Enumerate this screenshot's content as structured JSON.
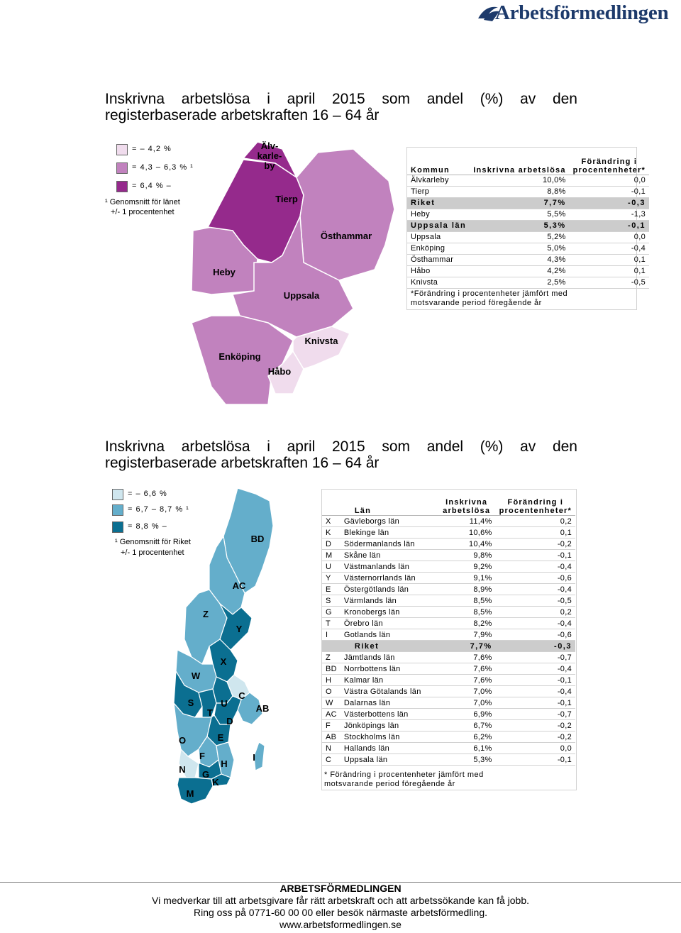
{
  "brand": {
    "name": "Arbetsförmedlingen"
  },
  "section1": {
    "title": "Inskrivna arbetslösa i april 2015 som andel (%) av den registerbaserade arbetskraften 16 – 64 år",
    "legend": [
      {
        "label": "= – 4,2 %",
        "color": "#f0dced"
      },
      {
        "label": "= 4,3 – 6,3 % ¹",
        "color": "#c182be"
      },
      {
        "label": "= 6,4 % –",
        "color": "#952a8c"
      }
    ],
    "legend_note": [
      "¹ Genomsnitt för länet",
      "+/- 1 procentenhet"
    ],
    "table": {
      "headers": [
        "Kommun",
        "Inskrivna arbetslösa",
        "Förändring i procentenheter*"
      ],
      "rows": [
        {
          "name": "Älvkarleby",
          "value": "10,0%",
          "change": "0,0",
          "highlight": false
        },
        {
          "name": "Tierp",
          "value": "8,8%",
          "change": "-0,1",
          "highlight": false
        },
        {
          "name": "Riket",
          "value": "7,7%",
          "change": "-0,3",
          "highlight": true
        },
        {
          "name": "Heby",
          "value": "5,5%",
          "change": "-1,3",
          "highlight": false
        },
        {
          "name": "Uppsala län",
          "value": "5,3%",
          "change": "-0,1",
          "highlight": true
        },
        {
          "name": "Uppsala",
          "value": "5,2%",
          "change": "0,0",
          "highlight": false
        },
        {
          "name": "Enköping",
          "value": "5,0%",
          "change": "-0,4",
          "highlight": false
        },
        {
          "name": "Östhammar",
          "value": "4,3%",
          "change": "0,1",
          "highlight": false
        },
        {
          "name": "Håbo",
          "value": "4,2%",
          "change": "0,1",
          "highlight": false
        },
        {
          "name": "Knivsta",
          "value": "2,5%",
          "change": "-0,5",
          "highlight": false
        }
      ],
      "note": [
        "*Förändring i procentenheter jämfört med",
        "motsvarande period föregående år"
      ]
    },
    "map_labels": {
      "alvkarleby": "Älv-\nkarle-\nby",
      "tierp": "Tierp",
      "osthammar": "Östhammar",
      "heby": "Heby",
      "uppsala": "Uppsala",
      "knivsta": "Knivsta",
      "enkoping": "Enköping",
      "habo": "Håbo"
    }
  },
  "section2": {
    "title": "Inskrivna arbetslösa i april 2015 som andel (%) av den registerbaserade arbetskraften 16 – 64 år",
    "legend": [
      {
        "label": "= – 6,6 %",
        "color": "#cfe6ee"
      },
      {
        "label": "= 6,7 – 8,7 % ¹",
        "color": "#64aecb"
      },
      {
        "label": "= 8,8 % –",
        "color": "#0b6f91"
      }
    ],
    "legend_note": [
      "¹ Genomsnitt för Riket",
      "+/- 1 procentenhet"
    ],
    "table": {
      "headers": [
        "",
        "Län",
        "Inskrivna arbetslösa",
        "Förändring i procentenheter*"
      ],
      "rows": [
        {
          "code": "X",
          "name": "Gävleborgs län",
          "value": "11,4%",
          "change": "0,2",
          "highlight": false
        },
        {
          "code": "K",
          "name": "Blekinge län",
          "value": "10,6%",
          "change": "0,1",
          "highlight": false
        },
        {
          "code": "D",
          "name": "Södermanlands län",
          "value": "10,4%",
          "change": "-0,2",
          "highlight": false
        },
        {
          "code": "M",
          "name": "Skåne län",
          "value": "9,8%",
          "change": "-0,1",
          "highlight": false
        },
        {
          "code": "U",
          "name": "Västmanlands län",
          "value": "9,2%",
          "change": "-0,4",
          "highlight": false
        },
        {
          "code": "Y",
          "name": "Västernorrlands län",
          "value": "9,1%",
          "change": "-0,6",
          "highlight": false
        },
        {
          "code": "E",
          "name": "Östergötlands län",
          "value": "8,9%",
          "change": "-0,4",
          "highlight": false
        },
        {
          "code": "S",
          "name": "Värmlands län",
          "value": "8,5%",
          "change": "-0,5",
          "highlight": false
        },
        {
          "code": "G",
          "name": "Kronobergs län",
          "value": "8,5%",
          "change": "0,2",
          "highlight": false
        },
        {
          "code": "T",
          "name": "Örebro län",
          "value": "8,2%",
          "change": "-0,4",
          "highlight": false
        },
        {
          "code": "I",
          "name": "Gotlands län",
          "value": "7,9%",
          "change": "-0,6",
          "highlight": false
        },
        {
          "code": "",
          "name": "Riket",
          "value": "7,7%",
          "change": "-0,3",
          "highlight": true
        },
        {
          "code": "Z",
          "name": "Jämtlands län",
          "value": "7,6%",
          "change": "-0,7",
          "highlight": false
        },
        {
          "code": "BD",
          "name": "Norrbottens län",
          "value": "7,6%",
          "change": "-0,4",
          "highlight": false
        },
        {
          "code": "H",
          "name": "Kalmar län",
          "value": "7,6%",
          "change": "-0,1",
          "highlight": false
        },
        {
          "code": "O",
          "name": "Västra Götalands län",
          "value": "7,0%",
          "change": "-0,4",
          "highlight": false
        },
        {
          "code": "W",
          "name": "Dalarnas län",
          "value": "7,0%",
          "change": "-0,1",
          "highlight": false
        },
        {
          "code": "AC",
          "name": "Västerbottens län",
          "value": "6,9%",
          "change": "-0,7",
          "highlight": false
        },
        {
          "code": "F",
          "name": "Jönköpings län",
          "value": "6,7%",
          "change": "-0,2",
          "highlight": false
        },
        {
          "code": "AB",
          "name": "Stockholms län",
          "value": "6,2%",
          "change": "-0,2",
          "highlight": false
        },
        {
          "code": "N",
          "name": "Hallands län",
          "value": "6,1%",
          "change": "0,0",
          "highlight": false
        },
        {
          "code": "C",
          "name": "Uppsala län",
          "value": "5,3%",
          "change": "-0,1",
          "highlight": false
        }
      ],
      "note": [
        "* Förändring i procentenheter jämfört med",
        "motsvarande period föregående år"
      ]
    },
    "map_labels": [
      "BD",
      "AC",
      "Z",
      "Y",
      "X",
      "W",
      "C",
      "AB",
      "S",
      "T",
      "U",
      "D",
      "E",
      "O",
      "F",
      "H",
      "I",
      "N",
      "G",
      "K",
      "M"
    ]
  },
  "footer": {
    "org": "ARBETSFÖRMEDLINGEN",
    "line1": "Vi medverkar till att arbetsgivare får rätt arbetskraft och att arbetssökande kan få jobb.",
    "line2": "Ring oss på 0771-60 00 00 eller besök närmaste arbetsförmedling.",
    "url": "www.arbetsformedlingen.se"
  }
}
